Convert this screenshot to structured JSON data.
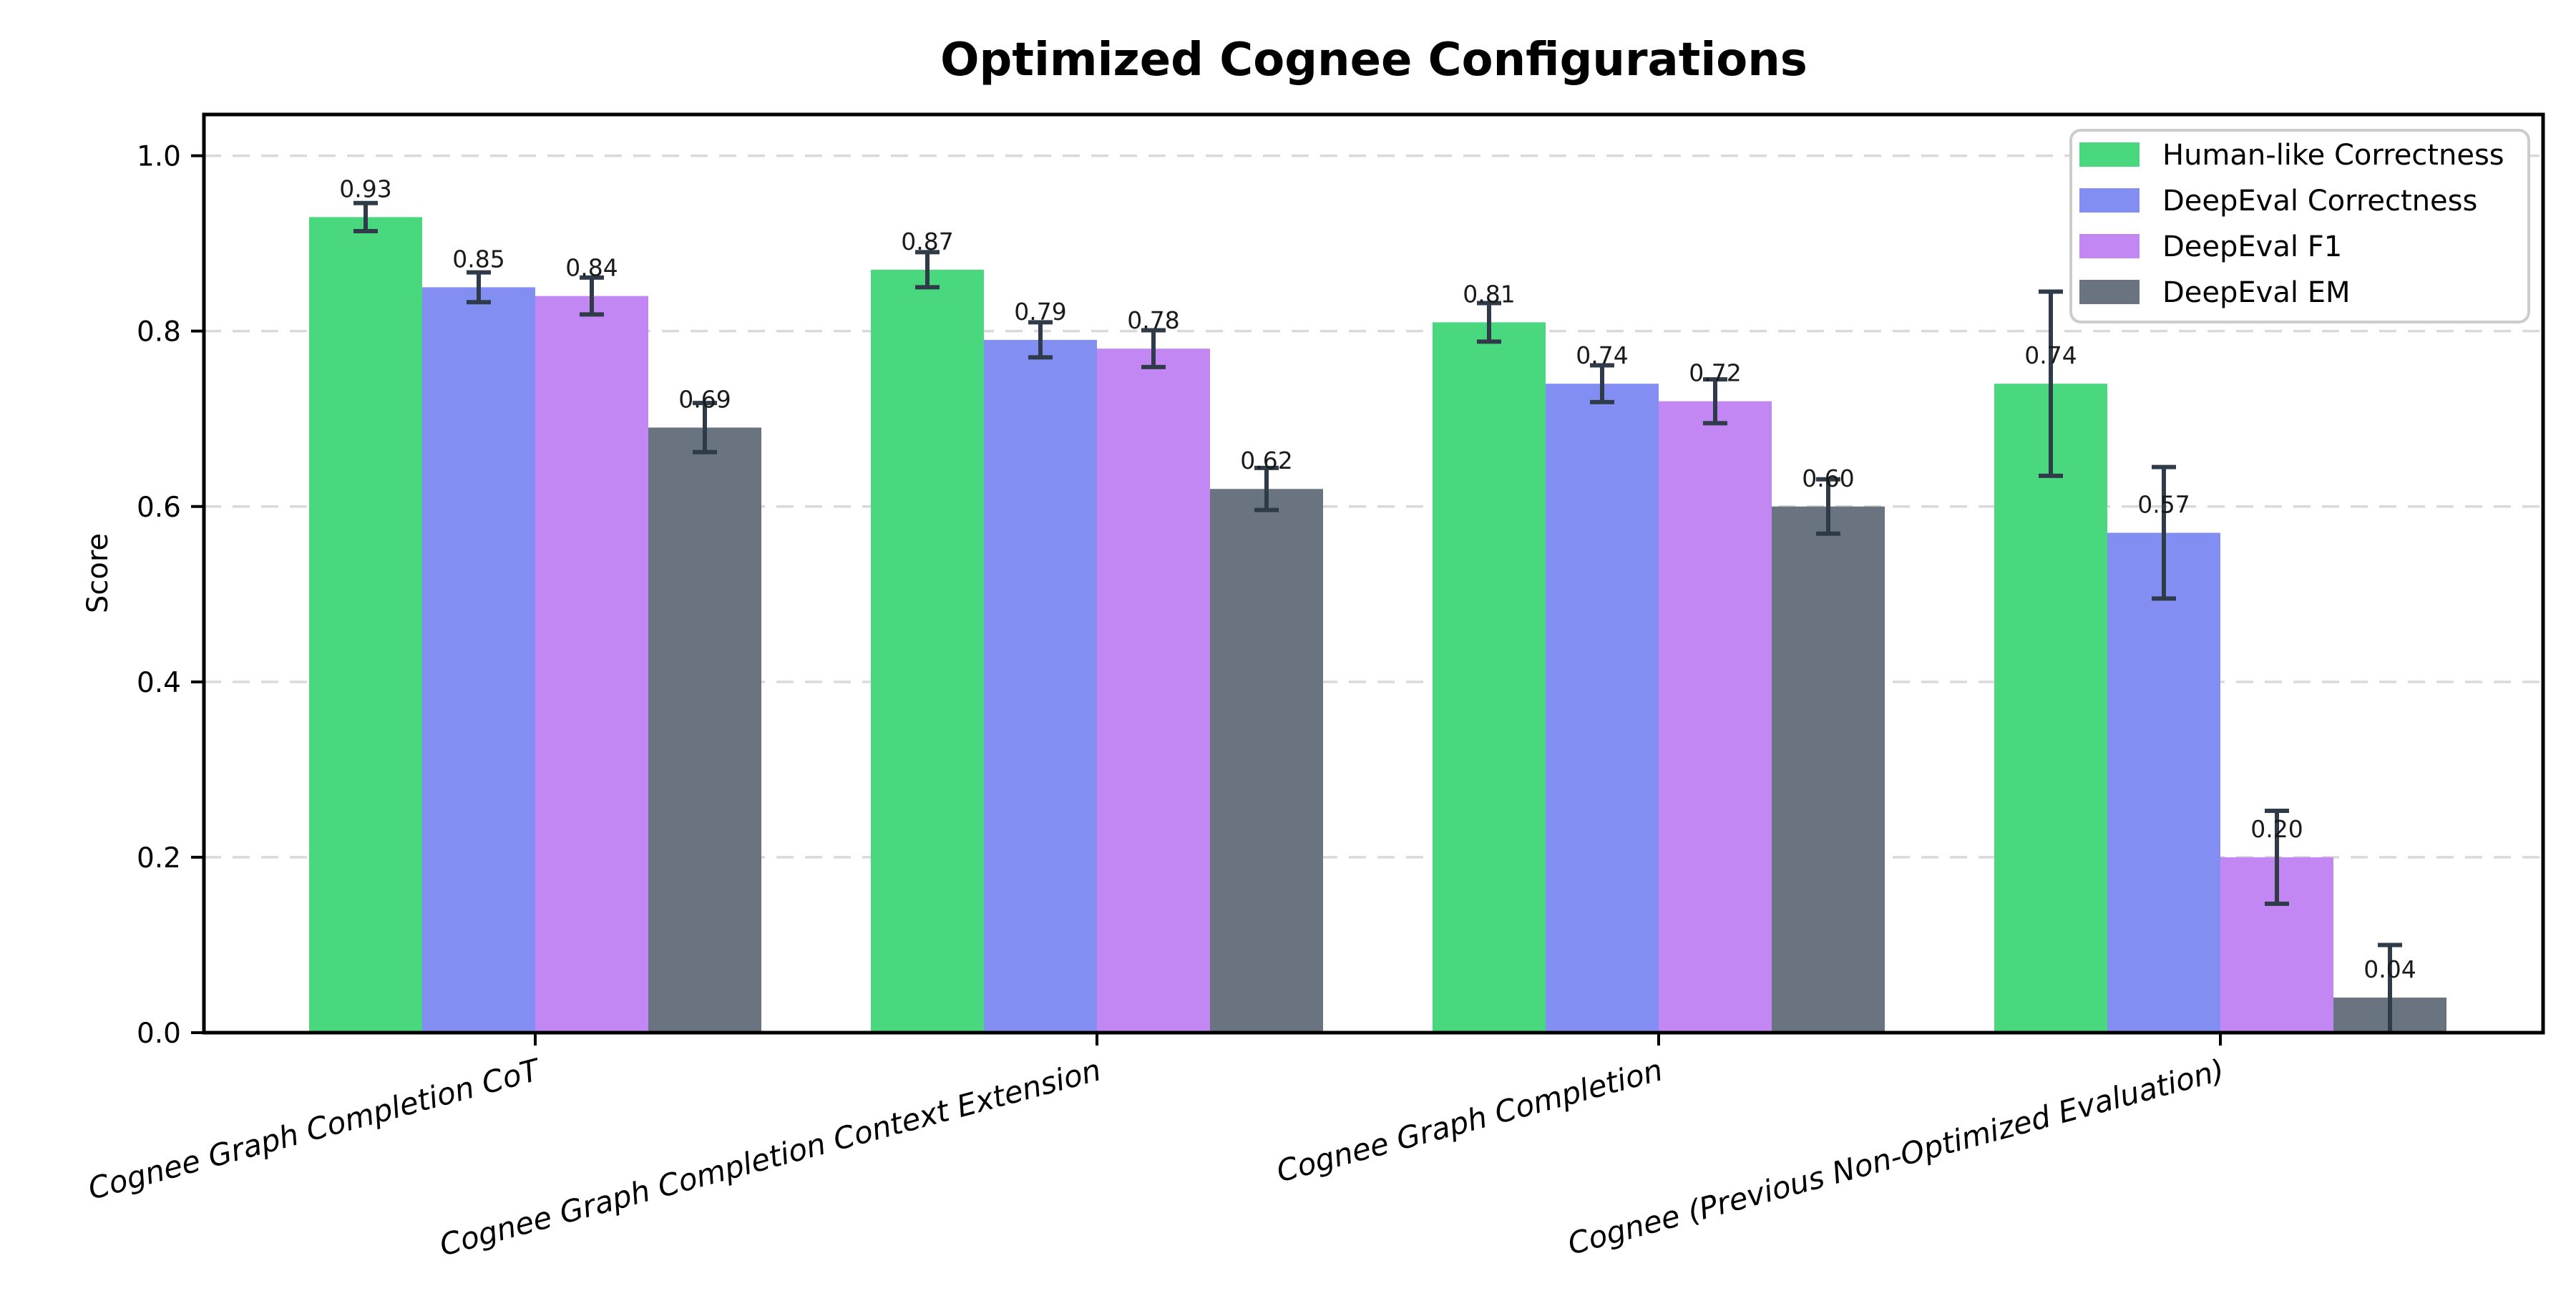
{
  "chart_data": {
    "type": "bar",
    "title": "Optimized Cognee Configurations",
    "xlabel": "",
    "ylabel": "Score",
    "ylim": [
      0,
      1.047
    ],
    "yticks": [
      0.0,
      0.2,
      0.4,
      0.6,
      0.8,
      1.0
    ],
    "grid": "horizontal-dashed",
    "legend_position": "upper-right",
    "categories": [
      "Cognee Graph Completion CoT",
      "Cognee Graph Completion Context Extension",
      "Cognee Graph Completion",
      "Cognee (Previous Non-Optimized Evaluation)"
    ],
    "series": [
      {
        "name": "Human-like Correctness",
        "color": "#49d87e",
        "values": [
          0.93,
          0.87,
          0.81,
          0.74
        ],
        "errors": [
          0.016,
          0.02,
          0.022,
          0.105
        ]
      },
      {
        "name": "DeepEval Correctness",
        "color": "#838ef2",
        "values": [
          0.85,
          0.79,
          0.74,
          0.57
        ],
        "errors": [
          0.017,
          0.02,
          0.021,
          0.075
        ]
      },
      {
        "name": "DeepEval F1",
        "color": "#c287f2",
        "values": [
          0.84,
          0.78,
          0.72,
          0.2
        ],
        "errors": [
          0.021,
          0.021,
          0.025,
          0.053
        ]
      },
      {
        "name": "DeepEval EM",
        "color": "#6a7380",
        "values": [
          0.69,
          0.62,
          0.6,
          0.04
        ],
        "errors": [
          0.028,
          0.024,
          0.031,
          0.06
        ]
      }
    ],
    "value_label_decimals": 2,
    "colors": {
      "error_bar": "#2f3b49",
      "gridline": "#d9d9d9",
      "spine": "#000000",
      "legend_border": "#cccccc",
      "background": "#ffffff"
    }
  }
}
